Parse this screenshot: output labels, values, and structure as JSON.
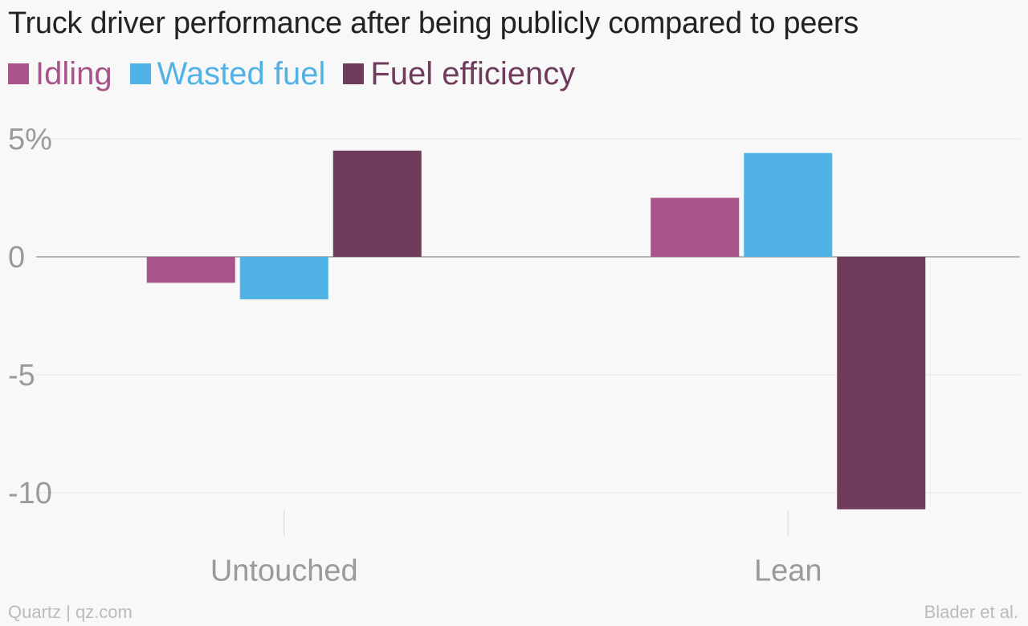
{
  "chart_data": {
    "type": "bar",
    "title": "Truck driver performance after being publicly compared to peers",
    "categories": [
      "Untouched",
      "Lean"
    ],
    "series": [
      {
        "name": "Idling",
        "color": "#a8538a",
        "values": [
          -1.1,
          2.5
        ]
      },
      {
        "name": "Wasted fuel",
        "color": "#51b2e5",
        "values": [
          -1.8,
          4.4
        ]
      },
      {
        "name": "Fuel efficiency",
        "color": "#703c5c",
        "values": [
          4.5,
          -10.7
        ]
      }
    ],
    "yticks": [
      {
        "value": 5,
        "label": "5%"
      },
      {
        "value": 0,
        "label": "0"
      },
      {
        "value": -5,
        "label": "-5"
      },
      {
        "value": -10,
        "label": "-10"
      }
    ],
    "ylim": [
      -11,
      5
    ],
    "xlabel": "",
    "ylabel": "",
    "grid": true,
    "legend_position": "top-left"
  },
  "footer": {
    "source_left": "Quartz | qz.com",
    "source_right": "Blader et al."
  }
}
